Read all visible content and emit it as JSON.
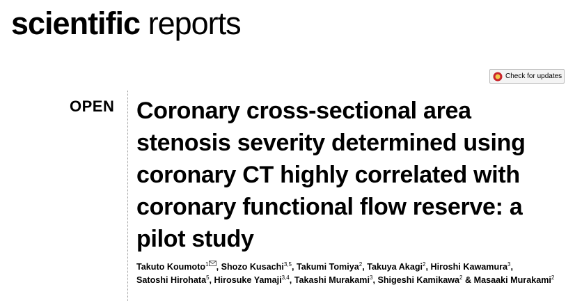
{
  "header": {
    "journal_bold": "scientific",
    "journal_light": "reports"
  },
  "badge": {
    "label": "Check for updates"
  },
  "article": {
    "access": "OPEN",
    "title_lines": [
      "Coronary cross-sectional area",
      "stenosis severity determined using",
      "coronary CT highly correlated with",
      "coronary functional flow reserve: a",
      "pilot study"
    ],
    "authors": [
      {
        "name": "Takuto Koumoto",
        "sup": "1",
        "separator": ","
      },
      {
        "name": "Shozo Kusachi",
        "sup": "3,5",
        "separator": ","
      },
      {
        "name": "Takumi Tomiya",
        "sup": "2",
        "separator": ","
      },
      {
        "name": "Takuya Akagi",
        "sup": "2",
        "separator": ","
      },
      {
        "name": "Hiroshi Kawamura",
        "sup": "3",
        "separator": ","
      },
      {
        "name": "Satoshi Hirohata",
        "sup": "5",
        "separator": ","
      },
      {
        "name": "Hirosuke Yamaji",
        "sup": "3,4",
        "separator": ","
      },
      {
        "name": "Takashi Murakami",
        "sup": "3",
        "separator": ","
      },
      {
        "name": "Shigeshi Kamikawa",
        "sup": "2",
        "separator": "&"
      },
      {
        "name": "Masaaki Murakami",
        "sup": "2"
      }
    ]
  }
}
